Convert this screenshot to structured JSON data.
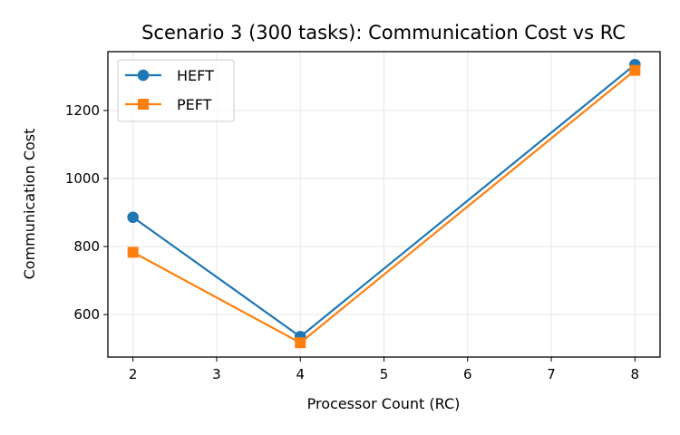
{
  "chart_data": {
    "type": "line",
    "title": "Scenario 3 (300 tasks): Communication Cost vs RC",
    "xlabel": "Processor Count (RC)",
    "ylabel": "Communication Cost",
    "x": [
      2,
      4,
      8
    ],
    "xlim": [
      1.7,
      8.3
    ],
    "ylim": [
      475,
      1373
    ],
    "xticks": [
      "2",
      "3",
      "4",
      "5",
      "6",
      "7",
      "8"
    ],
    "yticks": [
      "600",
      "800",
      "1000",
      "1200"
    ],
    "grid": true,
    "legend_position": "top-left",
    "series": [
      {
        "name": "HEFT",
        "values": [
          886,
          535,
          1335
        ],
        "color": "#1f77b4",
        "marker": "circle"
      },
      {
        "name": "PEFT",
        "values": [
          783,
          517,
          1318
        ],
        "color": "#ff7f0e",
        "marker": "square"
      }
    ]
  }
}
